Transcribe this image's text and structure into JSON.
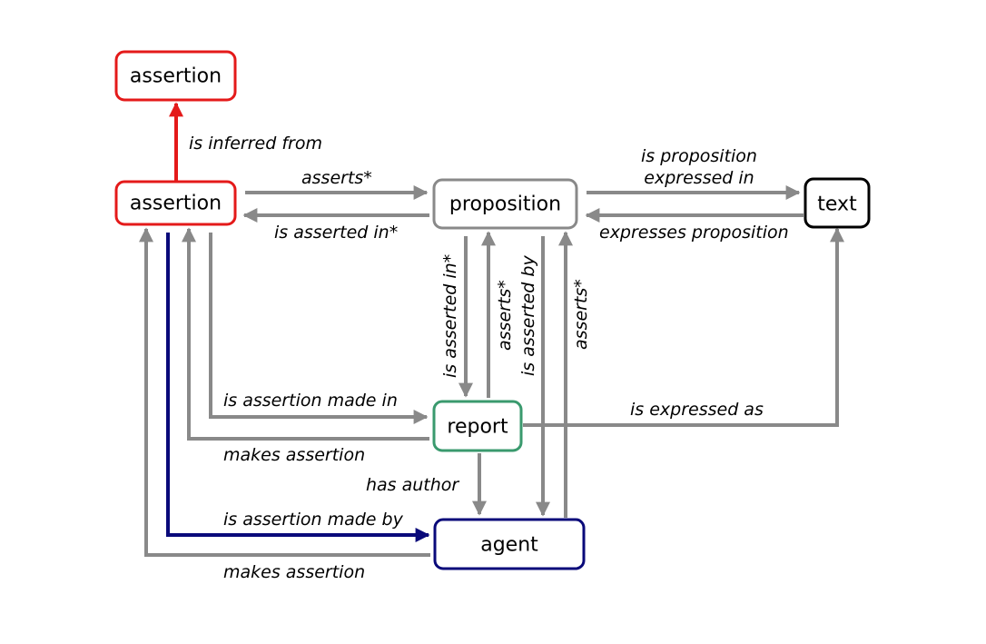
{
  "colors": {
    "gray": "#898989",
    "red": "#e41a1a",
    "green": "#3a9a6e",
    "navy": "#0a0a7a",
    "black": "#000000"
  },
  "nodes": {
    "assertion_top": "assertion",
    "assertion": "assertion",
    "proposition": "proposition",
    "text": "text",
    "report": "report",
    "agent": "agent"
  },
  "edges": {
    "is_inferred_from": "is inferred from",
    "asserts_to_proposition": "asserts*",
    "is_asserted_in_from_proposition": "is asserted in*",
    "is_proposition_expressed_in_line1": "is proposition",
    "is_proposition_expressed_in_line2": "expressed in",
    "expresses_proposition": "expresses proposition",
    "is_asserted_in_report": "is asserted in*",
    "asserts_from_report": "asserts*",
    "is_asserted_by": "is asserted by",
    "asserts_from_agent": "asserts*",
    "is_assertion_made_in": "is assertion made in",
    "makes_assertion_report": "makes assertion",
    "is_expressed_as": "is expressed as",
    "has_author": "has author",
    "is_assertion_made_by": "is assertion made by",
    "makes_assertion_agent": "makes assertion"
  }
}
